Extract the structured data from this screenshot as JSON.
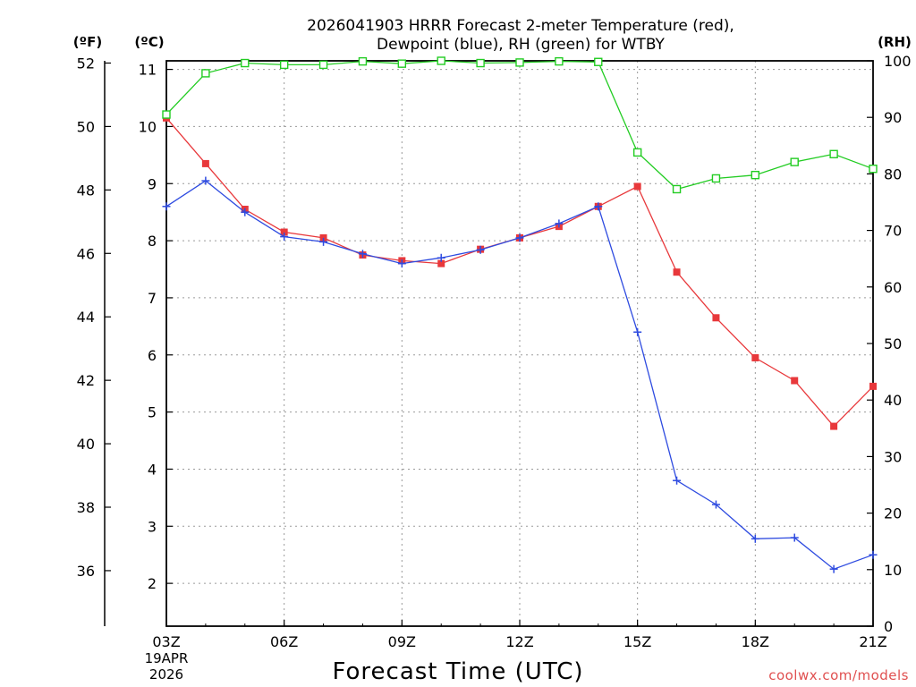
{
  "chart_data": {
    "type": "line",
    "title": "2026041903 HRRR Forecast 2-meter Temperature (red),",
    "subtitle": "Dewpoint (blue), RH (green) for WTBY",
    "xlabel": "Forecast Time (UTC)",
    "left_outer_label": "(ºF)",
    "left_inner_label": "(ºC)",
    "right_label": "(RH)",
    "x_ticks": [
      "03Z",
      "06Z",
      "09Z",
      "12Z",
      "15Z",
      "18Z",
      "21Z"
    ],
    "x_date_line1": "19APR",
    "x_date_line2": "2026",
    "x_hours": [
      3,
      4,
      5,
      6,
      7,
      8,
      9,
      10,
      11,
      12,
      13,
      14,
      15,
      16,
      17,
      18,
      19,
      20,
      21
    ],
    "x_range": [
      3,
      21
    ],
    "y_celsius": {
      "range": [
        1.25,
        11.15
      ],
      "ticks": [
        "2",
        "3",
        "4",
        "5",
        "6",
        "7",
        "8",
        "9",
        "10",
        "11"
      ]
    },
    "y_fahrenheit": {
      "range": [
        34.25,
        52.07
      ],
      "ticks": [
        "36",
        "38",
        "40",
        "42",
        "44",
        "46",
        "48",
        "50",
        "52"
      ]
    },
    "y_rh": {
      "range": [
        0,
        100
      ],
      "ticks": [
        "0",
        "10",
        "20",
        "30",
        "40",
        "50",
        "60",
        "70",
        "80",
        "90",
        "100"
      ]
    },
    "grid": true,
    "series": [
      {
        "name": "Temperature",
        "color": "#e8383b",
        "marker": "filled-square",
        "axis": "celsius",
        "values": [
          10.15,
          9.35,
          8.55,
          8.15,
          8.05,
          7.75,
          7.65,
          7.6,
          7.85,
          8.05,
          8.25,
          8.6,
          8.95,
          7.45,
          6.65,
          5.95,
          5.55,
          4.75,
          5.45
        ]
      },
      {
        "name": "Dewpoint",
        "color": "#2e4be0",
        "marker": "plus",
        "axis": "celsius",
        "values": [
          8.6,
          9.05,
          8.5,
          8.07,
          7.98,
          7.77,
          7.6,
          7.7,
          7.84,
          8.05,
          8.3,
          8.6,
          6.4,
          3.8,
          3.38,
          2.78,
          2.8,
          2.25,
          2.5
        ]
      },
      {
        "name": "RH",
        "color": "#22cc22",
        "marker": "open-square",
        "axis": "rh",
        "values": [
          90.5,
          97.8,
          99.6,
          99.3,
          99.3,
          99.9,
          99.5,
          100,
          99.6,
          99.7,
          99.9,
          99.8,
          83.8,
          77.3,
          79.2,
          79.8,
          82.1,
          83.5,
          80.9
        ]
      }
    ]
  },
  "footer": {
    "credit": "coolwx.com/models"
  }
}
